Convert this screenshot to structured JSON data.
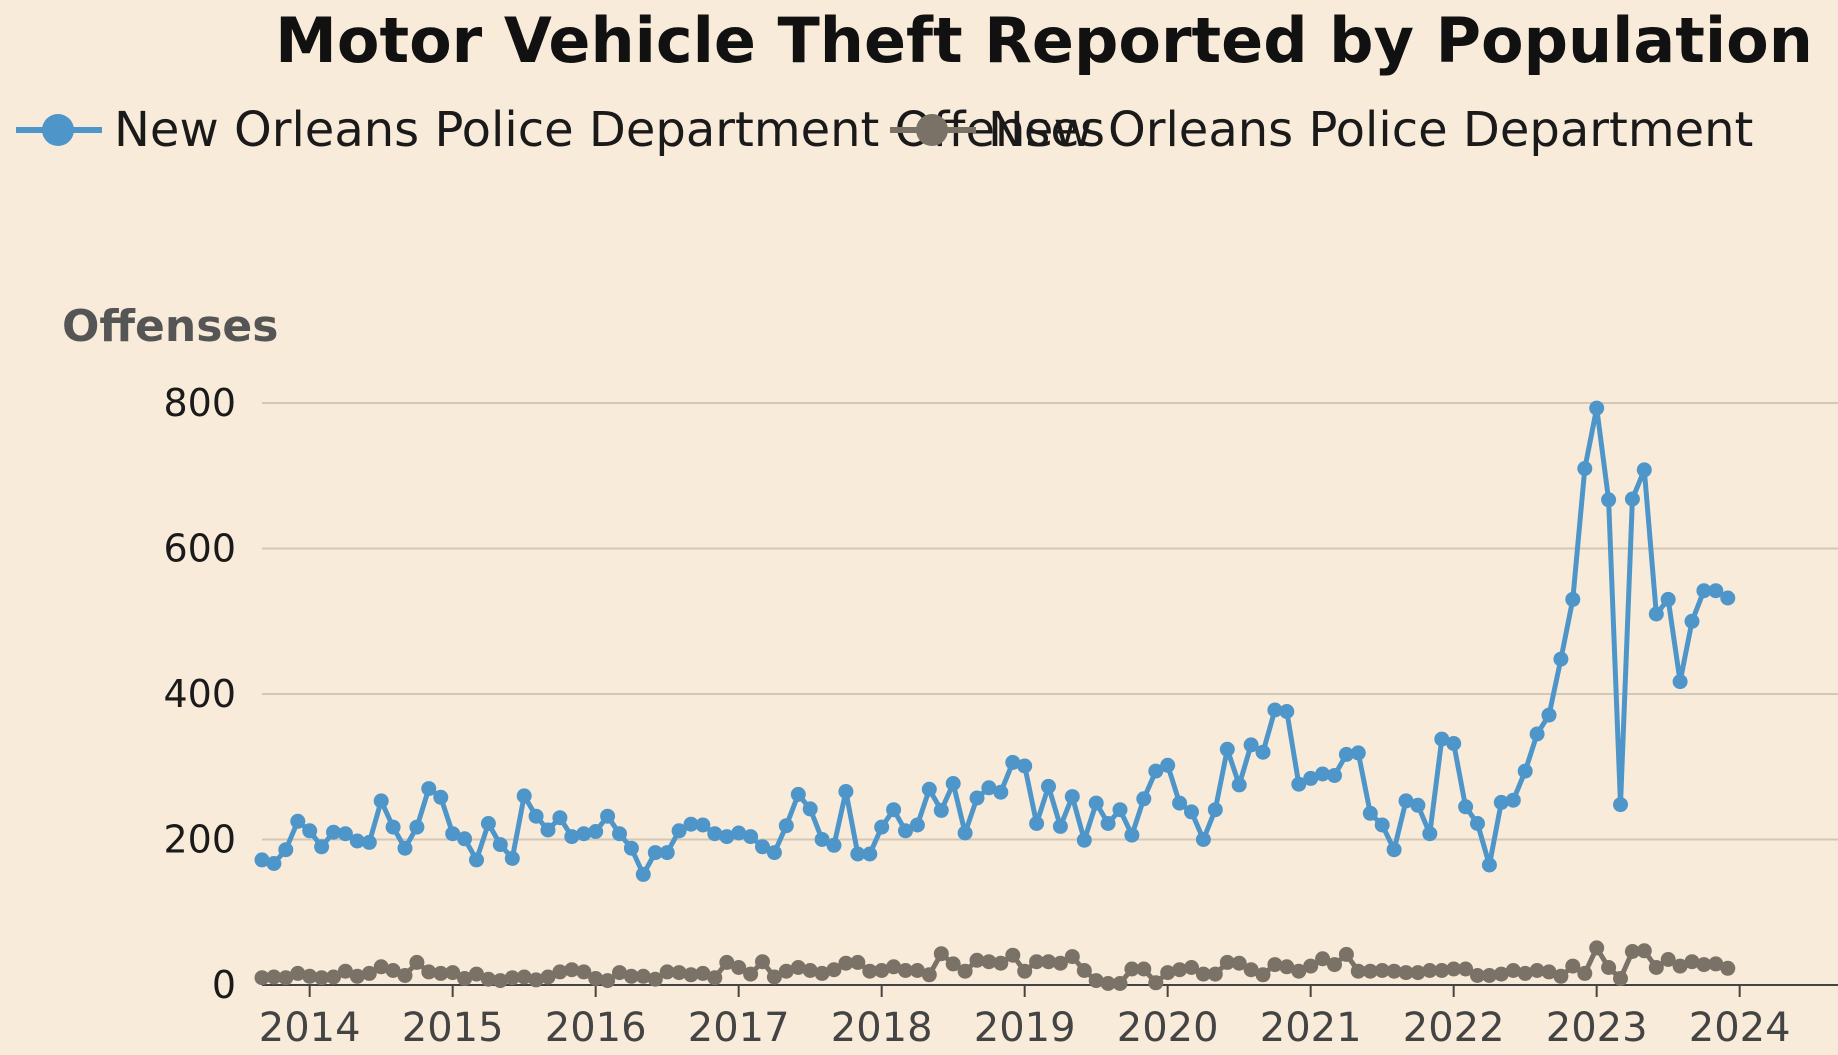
{
  "chart_data": {
    "type": "line",
    "title": "Motor Vehicle Theft Reported by Population",
    "ylabel": "Offenses",
    "ylim": [
      0,
      800
    ],
    "yticks": [
      0,
      200,
      400,
      600,
      800
    ],
    "xticks": [
      "2014",
      "2015",
      "2016",
      "2017",
      "2018",
      "2019",
      "2020",
      "2021",
      "2022",
      "2023",
      "2024"
    ],
    "x_start": {
      "year": 2013,
      "month": 9
    },
    "legend_position": "top-left",
    "series": [
      {
        "name": "New Orleans Police Department Offenses",
        "color": "#4e96c9",
        "values": [
          172,
          167,
          186,
          225,
          212,
          190,
          210,
          208,
          198,
          196,
          253,
          217,
          188,
          217,
          270,
          258,
          208,
          201,
          172,
          222,
          193,
          174,
          260,
          232,
          213,
          230,
          204,
          208,
          211,
          232,
          208,
          188,
          152,
          182,
          182,
          212,
          221,
          220,
          208,
          204,
          209,
          204,
          190,
          182,
          219,
          262,
          242,
          200,
          192,
          266,
          180,
          180,
          217,
          241,
          212,
          220,
          269,
          240,
          277,
          209,
          257,
          271,
          265,
          306,
          301,
          222,
          273,
          218,
          259,
          199,
          250,
          222,
          241,
          206,
          256,
          294,
          302,
          250,
          238,
          200,
          241,
          324,
          275,
          330,
          320,
          378,
          376,
          276,
          284,
          290,
          288,
          317,
          319,
          236,
          220,
          186,
          253,
          247,
          208,
          338,
          332,
          245,
          222,
          165,
          251,
          254,
          294,
          345,
          371,
          448,
          530,
          710,
          793,
          667,
          248,
          668,
          708,
          510,
          530,
          417,
          500,
          542,
          542,
          532
        ]
      },
      {
        "name": "New Orleans Police Department",
        "color": "#7a7267",
        "values": [
          10,
          11,
          10,
          16,
          12,
          10,
          11,
          19,
          12,
          16,
          25,
          20,
          13,
          31,
          18,
          16,
          17,
          9,
          15,
          8,
          6,
          10,
          11,
          7,
          11,
          18,
          21,
          18,
          9,
          6,
          17,
          12,
          12,
          8,
          18,
          17,
          14,
          16,
          10,
          31,
          24,
          15,
          32,
          11,
          19,
          24,
          20,
          16,
          21,
          30,
          31,
          19,
          20,
          25,
          20,
          20,
          14,
          43,
          29,
          19,
          34,
          32,
          30,
          41,
          19,
          32,
          32,
          30,
          39,
          20,
          6,
          2,
          2,
          22,
          22,
          3,
          17,
          21,
          24,
          15,
          15,
          31,
          30,
          21,
          14,
          28,
          25,
          19,
          26,
          36,
          28,
          42,
          19,
          19,
          20,
          19,
          17,
          17,
          20,
          20,
          22,
          22,
          13,
          13,
          15,
          20,
          16,
          20,
          18,
          12,
          26,
          16,
          51,
          24,
          9,
          46,
          47,
          24,
          35,
          26,
          32,
          28,
          29,
          23
        ]
      }
    ]
  }
}
